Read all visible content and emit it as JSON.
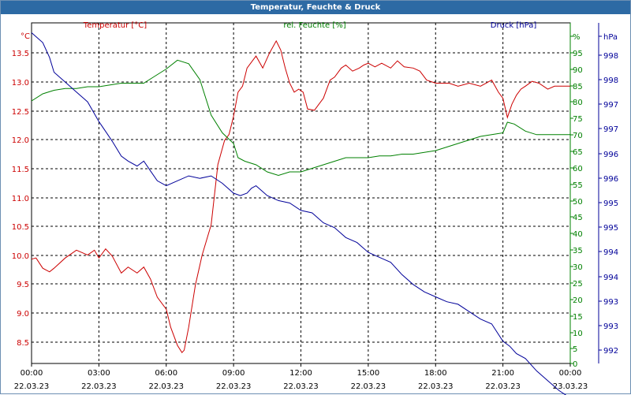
{
  "window": {
    "title": "Temperatur, Feuchte & Druck"
  },
  "chart_data": {
    "type": "line",
    "title": "Temperatur, Feuchte & Druck",
    "x_ticks": [
      {
        "time": "00:00",
        "date": "22.03.23"
      },
      {
        "time": "03:00",
        "date": "22.03.23"
      },
      {
        "time": "06:00",
        "date": "22.03.23"
      },
      {
        "time": "09:00",
        "date": "22.03.23"
      },
      {
        "time": "12:00",
        "date": "22.03.23"
      },
      {
        "time": "15:00",
        "date": "22.03.23"
      },
      {
        "time": "18:00",
        "date": "22.03.23"
      },
      {
        "time": "21:00",
        "date": "22.03.23"
      },
      {
        "time": "00:00",
        "date": "23.03.23"
      }
    ],
    "xlim_hours": [
      0,
      24
    ],
    "grid": true,
    "axes": {
      "temperature": {
        "label": "Temperatur [°C]",
        "unit": "°C",
        "side": "left",
        "color": "#cc0000",
        "ylim": [
          8.2,
          13.85
        ],
        "ticks": [
          "13.5",
          "13.0",
          "12.5",
          "12.0",
          "11.5",
          "11.0",
          "10.5",
          "10.0",
          "9.5",
          "9.0",
          "8.5"
        ]
      },
      "humidity": {
        "label": "rel. Feuchte [%]",
        "unit": "%",
        "side": "right-inner",
        "color": "#008000",
        "ylim": [
          0,
          96
        ],
        "ticks": [
          "%",
          "95",
          "90",
          "85",
          "80",
          "75",
          "70",
          "65",
          "60",
          "55",
          "50",
          "45",
          "40",
          "35",
          "30",
          "25",
          "20",
          "15",
          "10",
          "5",
          "0"
        ]
      },
      "pressure": {
        "label": "Druck [hPa]",
        "unit": "hPa",
        "side": "right-outer",
        "color": "#000099",
        "ylim": [
          991.6,
          998.5
        ],
        "ticks": [
          "hPa",
          "998",
          "998",
          "997",
          "997",
          "996",
          "996",
          "995",
          "995",
          "994",
          "994",
          "993",
          "993",
          "992"
        ]
      }
    },
    "series": [
      {
        "name": "Temperatur [°C]",
        "axis": "temperature",
        "color": "#cc0000",
        "x": [
          0,
          0.2,
          0.5,
          0.8,
          1.0,
          1.5,
          2.0,
          2.5,
          2.8,
          3.0,
          3.3,
          3.6,
          4.0,
          4.3,
          4.7,
          5.0,
          5.3,
          5.6,
          6.0,
          6.2,
          6.5,
          6.7,
          6.8,
          7.0,
          7.3,
          7.6,
          8.0,
          8.3,
          8.6,
          8.8,
          9.0,
          9.2,
          9.4,
          9.6,
          9.8,
          10.0,
          10.3,
          10.6,
          10.9,
          11.1,
          11.3,
          11.5,
          11.7,
          11.9,
          12.1,
          12.3,
          12.6,
          12.8,
          13.0,
          13.3,
          13.5,
          13.8,
          14.0,
          14.3,
          14.6,
          14.8,
          15.0,
          15.3,
          15.6,
          16.0,
          16.3,
          16.6,
          17.0,
          17.3,
          17.6,
          18.0,
          18.3,
          18.6,
          19.0,
          19.5,
          20.0,
          20.5,
          20.8,
          21.0,
          21.2,
          21.4,
          21.6,
          21.8,
          22.0,
          22.3,
          22.6,
          23.0,
          23.3,
          23.6,
          24.0
        ],
        "y": [
          9.93,
          9.95,
          9.78,
          9.72,
          9.78,
          9.95,
          10.08,
          10.0,
          10.08,
          9.95,
          10.1,
          9.98,
          9.7,
          9.8,
          9.7,
          9.8,
          9.6,
          9.3,
          9.1,
          8.8,
          8.5,
          8.38,
          8.42,
          8.8,
          9.5,
          10.0,
          10.5,
          11.5,
          11.9,
          12.0,
          12.3,
          12.7,
          12.8,
          13.1,
          13.2,
          13.3,
          13.1,
          13.35,
          13.55,
          13.4,
          13.1,
          12.85,
          12.7,
          12.75,
          12.7,
          12.42,
          12.4,
          12.5,
          12.6,
          12.9,
          12.95,
          13.1,
          13.15,
          13.05,
          13.1,
          13.15,
          13.18,
          13.12,
          13.18,
          13.1,
          13.22,
          13.12,
          13.1,
          13.05,
          12.9,
          12.85,
          12.85,
          12.85,
          12.8,
          12.85,
          12.8,
          12.9,
          12.7,
          12.6,
          12.28,
          12.5,
          12.65,
          12.75,
          12.8,
          12.88,
          12.85,
          12.75,
          12.8,
          12.8,
          12.8
        ]
      },
      {
        "name": "rel. Feuchte [%]",
        "axis": "humidity",
        "color": "#008000",
        "x": [
          0,
          0.5,
          1.0,
          1.5,
          2.0,
          2.5,
          3.0,
          3.5,
          4.0,
          4.5,
          5.0,
          5.5,
          6.0,
          6.5,
          7.0,
          7.5,
          8.0,
          8.5,
          9.0,
          9.2,
          9.5,
          10.0,
          10.5,
          11.0,
          11.5,
          12.0,
          12.5,
          13.0,
          13.5,
          14.0,
          14.5,
          15.0,
          15.5,
          16.0,
          16.5,
          17.0,
          17.5,
          18.0,
          18.5,
          19.0,
          19.5,
          20.0,
          20.5,
          21.0,
          21.2,
          21.5,
          22.0,
          22.5,
          23.0,
          23.5,
          24.0
        ],
        "y": [
          74,
          76,
          77,
          77.5,
          77.5,
          78,
          78,
          78.5,
          79,
          79,
          79,
          81,
          83,
          85.5,
          84.5,
          80,
          70,
          65,
          62,
          58,
          57,
          56,
          54,
          53,
          54,
          54,
          55,
          56,
          57,
          58,
          58,
          58,
          58.5,
          58.5,
          59,
          59,
          59.5,
          60,
          61,
          62,
          63,
          64,
          64.5,
          65,
          68,
          67.5,
          65.5,
          64.5,
          64.5,
          64.5,
          64.5
        ]
      },
      {
        "name": "Druck [hPa]",
        "axis": "pressure",
        "color": "#000099",
        "x": [
          0,
          0.5,
          0.8,
          1.0,
          1.5,
          2.0,
          2.5,
          3.0,
          3.3,
          3.6,
          4.0,
          4.3,
          4.7,
          5.0,
          5.3,
          5.6,
          6.0,
          6.5,
          7.0,
          7.5,
          8.0,
          8.5,
          9.0,
          9.3,
          9.6,
          9.8,
          10.0,
          10.5,
          11.0,
          11.5,
          12.0,
          12.5,
          13.0,
          13.5,
          14.0,
          14.5,
          15.0,
          15.5,
          16.0,
          16.5,
          17.0,
          17.5,
          18.0,
          18.5,
          19.0,
          19.5,
          20.0,
          20.5,
          21.0,
          21.3,
          21.6,
          22.0,
          22.5,
          23.0,
          23.5,
          24.0
        ],
        "y": [
          998.3,
          998.1,
          997.8,
          997.5,
          997.3,
          997.1,
          996.9,
          996.5,
          996.3,
          996.1,
          995.8,
          995.7,
          995.6,
          995.7,
          995.5,
          995.3,
          995.2,
          995.3,
          995.4,
          995.35,
          995.4,
          995.25,
          995.05,
          995.0,
          995.05,
          995.15,
          995.2,
          995.0,
          994.9,
          994.85,
          994.7,
          994.65,
          994.45,
          994.35,
          994.15,
          994.05,
          993.85,
          993.75,
          993.65,
          993.4,
          993.2,
          993.05,
          992.95,
          992.85,
          992.8,
          992.65,
          992.5,
          992.4,
          992.05,
          991.95,
          991.8,
          991.7,
          991.45,
          991.25,
          991.05,
          990.9
        ]
      }
    ]
  }
}
